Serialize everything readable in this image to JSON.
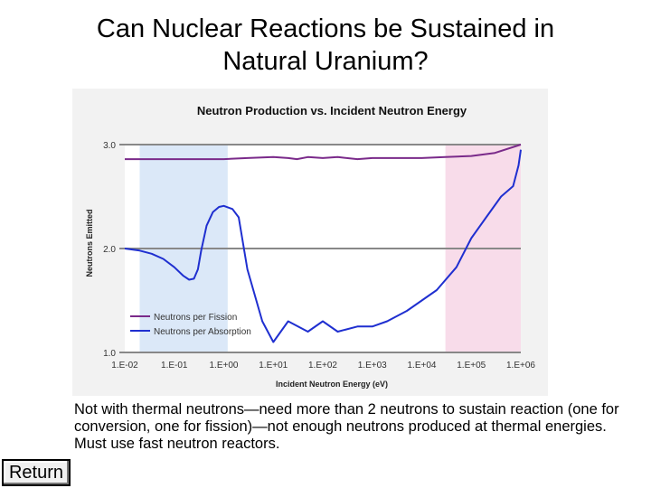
{
  "slide": {
    "title_lines": [
      "Can Nuclear Reactions be Sustained in",
      "Natural Uranium?"
    ],
    "caption": "Not with thermal neutrons—need more than 2 neutrons to sustain reaction (one for conversion, one for fission)—not enough neutrons produced at thermal energies.  Must use fast neutron reactors.",
    "return_label": "Return"
  },
  "chart_data": {
    "type": "line",
    "title": "Neutron Production vs. Incident Neutron Energy",
    "xlabel": "Incident Neutron Energy (eV)",
    "ylabel": "Neutrons Emitted",
    "x_scale": "log",
    "xlim": [
      0.01,
      1000000
    ],
    "ylim": [
      1.0,
      3.0
    ],
    "x_ticks": [
      0.01,
      0.1,
      1,
      10,
      100,
      1000,
      10000,
      100000,
      1000000
    ],
    "x_tick_labels": [
      "1.E-02",
      "1.E-01",
      "1.E+00",
      "1.E+01",
      "1.E+02",
      "1.E+03",
      "1.E+04",
      "1.E+05",
      "1.E+06"
    ],
    "y_ticks": [
      1.0,
      2.0,
      3.0
    ],
    "y_tick_labels": [
      "1.0",
      "2.0",
      "3.0"
    ],
    "grid": true,
    "legend": "bottom-left",
    "shaded_regions": [
      {
        "x": [
          0.02,
          1.2
        ],
        "color": "#dbe8f8"
      },
      {
        "x": [
          30000,
          1000000
        ],
        "color": "#f8dcea"
      }
    ],
    "series": [
      {
        "name": "Neutrons per Fission",
        "color": "#7a2a8a",
        "x": [
          0.01,
          0.1,
          1,
          3,
          10,
          20,
          30,
          50,
          100,
          200,
          500,
          1000,
          3000,
          10000,
          30000,
          100000,
          300000,
          1000000
        ],
        "y": [
          2.86,
          2.86,
          2.86,
          2.87,
          2.88,
          2.87,
          2.86,
          2.88,
          2.87,
          2.88,
          2.86,
          2.87,
          2.87,
          2.87,
          2.88,
          2.89,
          2.92,
          3.0
        ]
      },
      {
        "name": "Neutrons per Absorption",
        "color": "#1f2fd0",
        "x": [
          0.01,
          0.02,
          0.035,
          0.06,
          0.1,
          0.15,
          0.2,
          0.25,
          0.3,
          0.35,
          0.45,
          0.6,
          0.8,
          1.0,
          1.5,
          2.0,
          3.0,
          6.0,
          10,
          20,
          50,
          100,
          200,
          500,
          1000,
          2000,
          5000,
          10000,
          20000,
          50000,
          100000,
          200000,
          400000,
          700000,
          900000,
          1000000
        ],
        "y": [
          2.0,
          1.98,
          1.95,
          1.9,
          1.82,
          1.74,
          1.7,
          1.71,
          1.8,
          1.98,
          2.22,
          2.35,
          2.4,
          2.41,
          2.38,
          2.3,
          1.8,
          1.3,
          1.1,
          1.3,
          1.2,
          1.3,
          1.2,
          1.25,
          1.25,
          1.3,
          1.4,
          1.5,
          1.6,
          1.82,
          2.1,
          2.3,
          2.5,
          2.6,
          2.8,
          2.95
        ]
      }
    ]
  }
}
